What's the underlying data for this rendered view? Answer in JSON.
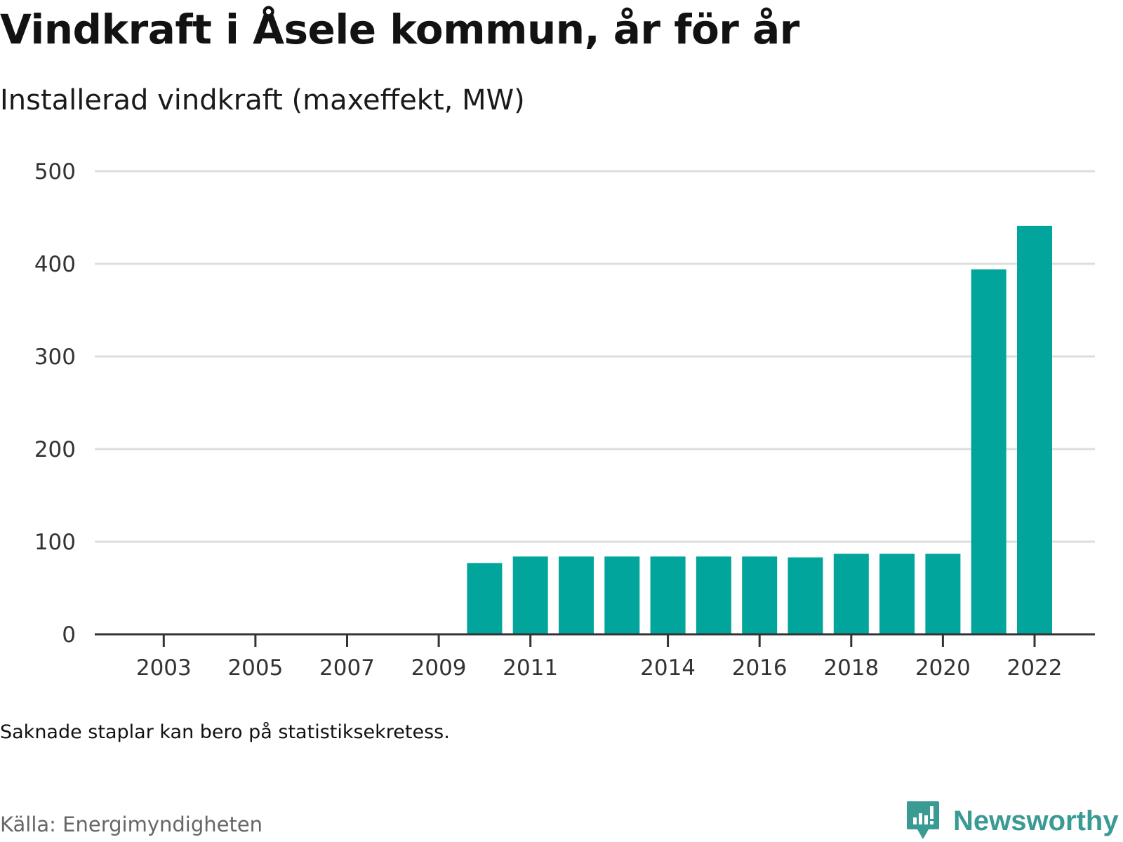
{
  "header": {
    "title": "Vindkraft i Åsele kommun, år för år",
    "subtitle": "Installerad vindkraft (maxeffekt, MW)"
  },
  "footer": {
    "note": "Saknade staplar kan bero på statistiksekretess.",
    "source": "Källa: Energimyndigheten",
    "brand": "Newsworthy"
  },
  "colors": {
    "bar": "#02a59b",
    "grid": "#dddddd",
    "axis": "#333333",
    "brand": "#3a9a94"
  },
  "chart_data": {
    "type": "bar",
    "title": "Vindkraft i Åsele kommun, år för år",
    "subtitle": "Installerad vindkraft (maxeffekt, MW)",
    "xlabel": "",
    "ylabel": "",
    "categories": [
      2002,
      2003,
      2004,
      2005,
      2006,
      2007,
      2008,
      2009,
      2010,
      2011,
      2012,
      2013,
      2014,
      2015,
      2016,
      2017,
      2018,
      2019,
      2020,
      2021,
      2022
    ],
    "values": [
      0,
      0,
      0,
      0,
      0,
      0,
      0,
      0,
      77,
      84,
      84,
      84,
      84,
      84,
      84,
      83,
      87,
      87,
      87,
      394,
      441
    ],
    "xticks": [
      2003,
      2005,
      2007,
      2009,
      2011,
      2014,
      2016,
      2018,
      2020,
      2022
    ],
    "yticks": [
      0,
      100,
      200,
      300,
      400,
      500
    ],
    "ylim": [
      0,
      500
    ],
    "grid": true,
    "legend": "none"
  }
}
